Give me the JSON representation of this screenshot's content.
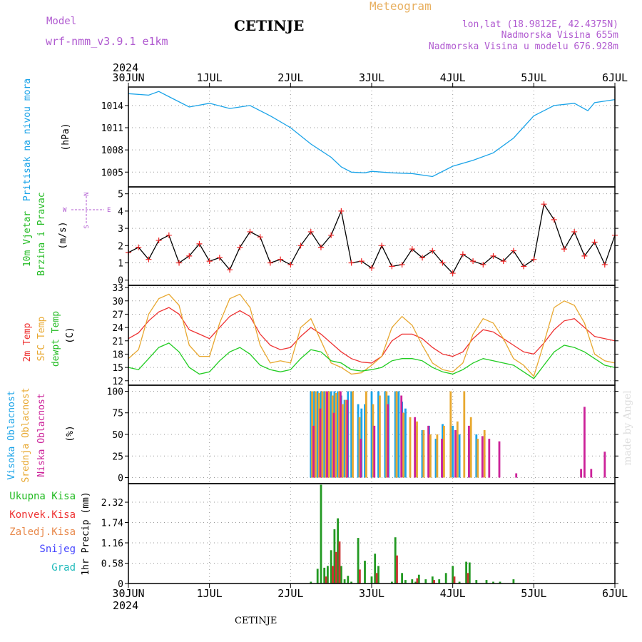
{
  "header": {
    "model_label": "Model",
    "model_name": "wrf-nmm_v3.9.1  e1km",
    "station": "CETINJE",
    "product": "Meteogram",
    "lonlat": "lon,lat (18.9812E, 42.4375N)",
    "elevation": "Nadmorska Visina 655m",
    "model_elevation": "Nadmorska Visina u modelu 676.928m"
  },
  "footer": {
    "station": "CETINJE",
    "credit": "made by Angel"
  },
  "time_axis": {
    "year": "2024",
    "ticks": [
      "30JUN",
      "1JUL",
      "2JUL",
      "3JUL",
      "4JUL",
      "5JUL",
      "6JUL"
    ],
    "x_range_hours": [
      0,
      144
    ]
  },
  "chart_data": [
    {
      "type": "line",
      "id": "pressure",
      "ylabel": [
        "Pritisak na nivou mora",
        "(hPa)"
      ],
      "ylim": [
        1003,
        1016.5
      ],
      "yticks": [
        1005,
        1008,
        1011,
        1014
      ],
      "grid": true,
      "series": [
        {
          "name": "Pritisak na nivou mora",
          "color": "#1aa3e8",
          "x": [
            0,
            6,
            9,
            12,
            18,
            24,
            30,
            36,
            42,
            48,
            54,
            60,
            63,
            66,
            70,
            72,
            78,
            84,
            90,
            96,
            102,
            108,
            114,
            120,
            126,
            132,
            136,
            138,
            144
          ],
          "y": [
            1015.6,
            1015.4,
            1015.9,
            1015.2,
            1013.8,
            1014.3,
            1013.6,
            1014.0,
            1012.6,
            1011.0,
            1008.8,
            1007.0,
            1005.7,
            1005.0,
            1004.9,
            1005.1,
            1004.9,
            1004.8,
            1004.4,
            1005.8,
            1006.6,
            1007.6,
            1009.6,
            1012.6,
            1014.0,
            1014.3,
            1013.3,
            1014.4,
            1014.8
          ]
        }
      ]
    },
    {
      "type": "line",
      "id": "wind",
      "ylabel": [
        "10m Vjetar",
        "Brzina i Pravac",
        "(m/s)"
      ],
      "compass": {
        "n": "N",
        "s": "S",
        "e": "E",
        "w": "W"
      },
      "ylim": [
        -0.3,
        5.4
      ],
      "yticks": [
        0,
        1,
        2,
        3,
        4,
        5
      ],
      "grid": true,
      "series": [
        {
          "name": "10m Vjetar",
          "color": "#000000",
          "gust_marker_color": "#ee2222",
          "x": [
            0,
            3,
            6,
            9,
            12,
            15,
            18,
            21,
            24,
            27,
            30,
            33,
            36,
            39,
            42,
            45,
            48,
            51,
            54,
            57,
            60,
            63,
            66,
            69,
            72,
            75,
            78,
            81,
            84,
            87,
            90,
            93,
            96,
            99,
            102,
            105,
            108,
            111,
            114,
            117,
            120,
            123,
            126,
            129,
            132,
            135,
            138,
            141,
            144
          ],
          "y": [
            1.6,
            1.9,
            1.2,
            2.3,
            2.6,
            1.0,
            1.4,
            2.1,
            1.1,
            1.3,
            0.6,
            1.9,
            2.8,
            2.5,
            1.0,
            1.2,
            0.9,
            2.0,
            2.8,
            1.9,
            2.6,
            4.0,
            1.0,
            1.1,
            0.7,
            2.0,
            0.8,
            0.9,
            1.8,
            1.3,
            1.7,
            1.0,
            0.4,
            1.5,
            1.1,
            0.9,
            1.4,
            1.1,
            1.7,
            0.8,
            1.2,
            4.4,
            3.5,
            1.8,
            2.8,
            1.4,
            2.2,
            0.9,
            2.6
          ]
        }
      ]
    },
    {
      "type": "line",
      "id": "temperature",
      "ylabel": [
        "2m Temp",
        "SFC Temp",
        "dewpt Temp",
        "(C)"
      ],
      "ylim": [
        11,
        33.5
      ],
      "yticks": [
        12,
        15,
        18,
        21,
        24,
        27,
        30,
        33
      ],
      "grid": true,
      "x": [
        0,
        3,
        6,
        9,
        12,
        15,
        18,
        21,
        24,
        27,
        30,
        33,
        36,
        39,
        42,
        45,
        48,
        51,
        54,
        57,
        60,
        63,
        66,
        69,
        72,
        75,
        78,
        81,
        84,
        87,
        90,
        93,
        96,
        99,
        102,
        105,
        108,
        111,
        114,
        117,
        120,
        123,
        126,
        129,
        132,
        135,
        138,
        141,
        144
      ],
      "series": [
        {
          "name": "2m Temp",
          "color": "#ee3333",
          "y": [
            21.5,
            22.8,
            25.5,
            27.5,
            28.5,
            27.0,
            23.5,
            22.5,
            21.5,
            24.0,
            26.5,
            27.8,
            26.5,
            22.5,
            20.0,
            19.0,
            19.5,
            22.0,
            24.0,
            22.5,
            20.5,
            18.5,
            17.0,
            16.2,
            16.0,
            17.5,
            21.0,
            22.5,
            22.5,
            21.5,
            19.5,
            18.0,
            17.5,
            18.5,
            21.5,
            23.5,
            23.0,
            21.5,
            20.0,
            18.5,
            18.0,
            20.5,
            23.5,
            25.5,
            26.0,
            24.0,
            22.0,
            21.5,
            21.0
          ]
        },
        {
          "name": "SFC Temp",
          "color": "#e8a830",
          "y": [
            17.0,
            19.0,
            27.0,
            30.5,
            31.5,
            29.0,
            20.0,
            17.5,
            17.5,
            25.0,
            30.5,
            31.5,
            28.5,
            20.0,
            16.0,
            16.5,
            16.0,
            24.0,
            26.0,
            21.0,
            16.0,
            15.0,
            13.5,
            13.8,
            15.5,
            17.5,
            24.0,
            26.5,
            24.5,
            20.0,
            16.0,
            14.5,
            14.0,
            16.0,
            22.5,
            26.0,
            25.0,
            21.5,
            17.0,
            15.5,
            13.0,
            20.5,
            28.5,
            30.0,
            29.0,
            25.0,
            18.0,
            16.5,
            16.0
          ]
        },
        {
          "name": "dewpt Temp",
          "color": "#22cc22",
          "y": [
            15.0,
            14.5,
            17.0,
            19.5,
            20.5,
            18.5,
            15.0,
            13.5,
            14.0,
            16.5,
            18.5,
            19.5,
            18.0,
            15.5,
            14.5,
            14.0,
            14.5,
            17.0,
            19.0,
            18.5,
            16.5,
            16.0,
            14.5,
            14.2,
            14.5,
            15.0,
            16.5,
            17.0,
            17.0,
            16.5,
            15.0,
            14.0,
            13.5,
            14.5,
            16.0,
            17.0,
            16.5,
            16.0,
            15.5,
            14.0,
            12.5,
            15.5,
            18.5,
            20.0,
            19.5,
            18.5,
            17.0,
            15.5,
            15.0
          ]
        }
      ]
    },
    {
      "type": "bar",
      "id": "cloud",
      "ylabel": [
        "Visoka Oblacnost",
        "Srednja Oblacnost",
        "Niska Oblacnost",
        "(%)"
      ],
      "ylim": [
        -7,
        107
      ],
      "yticks": [
        0,
        25,
        50,
        75,
        100
      ],
      "grid": true,
      "series": [
        {
          "name": "Visoka Oblacnost",
          "color": "#1aa3e8",
          "x": [
            54,
            55,
            56,
            57,
            58,
            59,
            60,
            61,
            62,
            63,
            64,
            65,
            66,
            68,
            69,
            70,
            72,
            74,
            76,
            77,
            79,
            80,
            81,
            82,
            85,
            87,
            89,
            91,
            93,
            96,
            98,
            101,
            103
          ],
          "y": [
            100,
            100,
            100,
            100,
            100,
            98,
            100,
            100,
            100,
            95,
            90,
            100,
            100,
            85,
            80,
            85,
            100,
            100,
            100,
            95,
            100,
            100,
            88,
            80,
            60,
            55,
            60,
            45,
            62,
            60,
            50,
            45,
            50
          ]
        },
        {
          "name": "Srednja Oblacnost",
          "color": "#e8a830",
          "x": [
            54.4,
            55.4,
            56.4,
            57.4,
            58.4,
            59.4,
            60.4,
            61.4,
            62.4,
            63.4,
            64.4,
            66.4,
            68.4,
            70.4,
            72.4,
            74.4,
            76.4,
            79.4,
            81.4,
            83.4,
            85.4,
            87.4,
            89.4,
            91.4,
            93.4,
            95.4,
            97.4,
            99.4,
            101.4,
            103.4,
            105.4
          ],
          "y": [
            100,
            100,
            98,
            100,
            100,
            100,
            95,
            98,
            100,
            85,
            90,
            100,
            70,
            100,
            85,
            95,
            100,
            100,
            75,
            70,
            65,
            55,
            50,
            50,
            60,
            100,
            65,
            100,
            70,
            45,
            55
          ]
        },
        {
          "name": "Niska Oblacnost",
          "color": "#cc2299",
          "x": [
            54.8,
            56.8,
            58.8,
            60.8,
            62.8,
            64.8,
            68.8,
            72.8,
            76.8,
            80.8,
            84.8,
            88.8,
            92.8,
            96.8,
            100.8,
            104.8,
            106.8,
            109.8,
            114.8,
            134,
            135,
            137,
            141
          ],
          "y": [
            60,
            80,
            100,
            75,
            100,
            90,
            45,
            60,
            85,
            95,
            70,
            60,
            45,
            55,
            60,
            48,
            45,
            42,
            5,
            10,
            82,
            10,
            30
          ]
        }
      ]
    },
    {
      "type": "bar",
      "id": "precip",
      "ylabel": [
        "1hr Precip (mm)"
      ],
      "legend": [
        "Ukupna Kisa",
        "Konvek.Kisa",
        "Zaledj.Kisa",
        "Snijeg",
        "Grad"
      ],
      "legend_colors": [
        "#22bb22",
        "#ee3333",
        "#e8884a",
        "#4444ff",
        "#22bbbb"
      ],
      "ylim": [
        0,
        2.85
      ],
      "yticks": [
        0,
        0.58,
        1.16,
        1.74,
        2.32
      ],
      "grid": true,
      "series": [
        {
          "name": "Ukupna Kisa",
          "color": "#229922",
          "x": [
            54,
            56,
            57,
            58,
            59,
            60,
            61,
            62,
            63,
            64,
            65,
            66,
            68,
            70,
            72,
            73,
            74,
            78,
            79,
            81,
            82,
            84,
            85,
            86,
            88,
            90,
            92,
            94,
            96,
            98,
            100,
            101,
            103,
            106,
            108,
            110,
            114
          ],
          "y": [
            0.05,
            0.42,
            2.82,
            0.45,
            0.5,
            0.95,
            1.55,
            1.86,
            0.5,
            0.12,
            0.22,
            0.05,
            1.3,
            0.65,
            0.2,
            0.85,
            0.5,
            0.05,
            1.32,
            0.3,
            0.1,
            0.12,
            0.05,
            0.25,
            0.12,
            0.2,
            0.12,
            0.3,
            0.5,
            0.05,
            0.62,
            0.6,
            0.1,
            0.1,
            0.05,
            0.05,
            0.12
          ]
        },
        {
          "name": "Konvek.Kisa",
          "color": "#cc3333",
          "x": [
            58.5,
            60.5,
            61.5,
            62.5,
            68.5,
            73.5,
            79.5,
            85.5,
            90.5,
            96.5,
            100.5
          ],
          "y": [
            0.2,
            0.5,
            0.9,
            1.2,
            0.4,
            0.3,
            0.8,
            0.15,
            0.1,
            0.2,
            0.3
          ]
        }
      ]
    }
  ]
}
